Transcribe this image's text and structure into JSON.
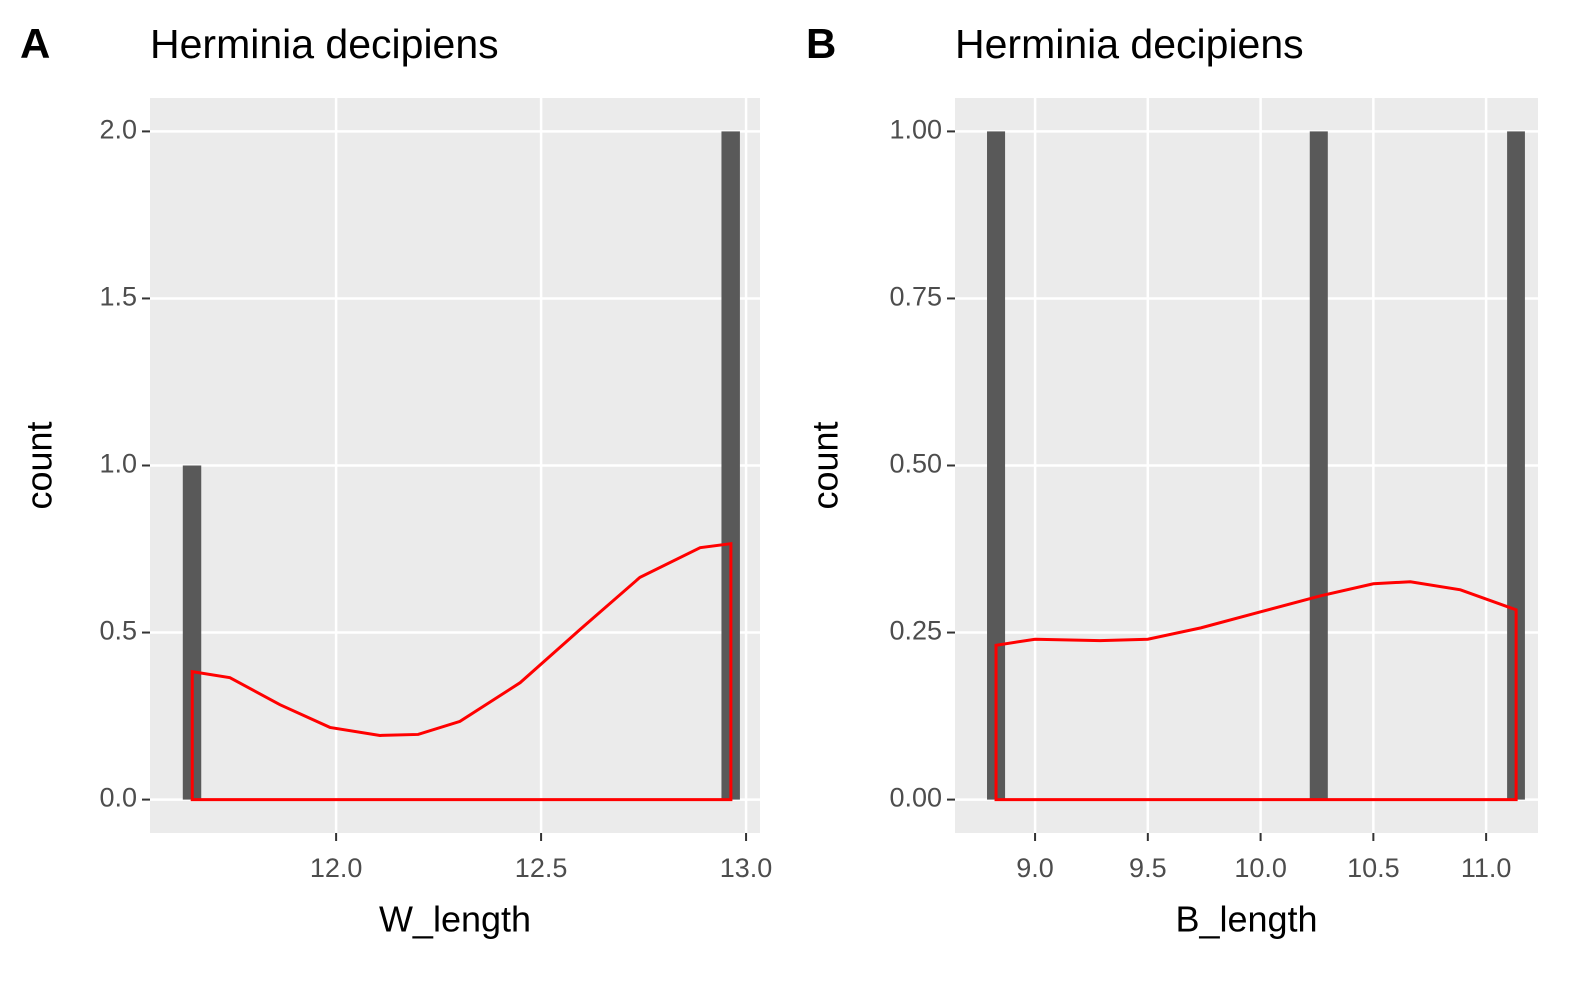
{
  "chart_data": [
    {
      "type": "histogram",
      "tag": "A",
      "title": "Herminia decipiens",
      "xlabel": "W_length",
      "ylabel": "count",
      "bins": [
        11.626,
        11.671,
        11.717,
        11.762,
        11.807,
        11.853,
        11.898,
        11.943,
        11.988,
        12.034,
        12.079,
        12.124,
        12.17,
        12.215,
        12.26,
        12.306,
        12.351,
        12.396,
        12.441,
        12.487,
        12.532,
        12.577,
        12.623,
        12.668,
        12.713,
        12.759,
        12.804,
        12.849,
        12.894,
        12.94,
        12.985
      ],
      "counts": [
        1,
        0,
        0,
        0,
        0,
        0,
        0,
        0,
        0,
        0,
        0,
        0,
        0,
        0,
        0,
        0,
        0,
        0,
        0,
        0,
        0,
        0,
        0,
        0,
        0,
        0,
        0,
        0,
        0,
        2
      ],
      "color": "#595959",
      "density": {
        "color": "#ff0000",
        "x": [
          11.649,
          11.741,
          11.863,
          11.985,
          12.107,
          12.2,
          12.302,
          12.449,
          12.595,
          12.741,
          12.888,
          12.963
        ],
        "values": [
          0.383,
          0.365,
          0.284,
          0.216,
          0.192,
          0.195,
          0.234,
          0.35,
          0.509,
          0.665,
          0.754,
          0.766
        ]
      },
      "xlim": [
        11.546,
        13.034
      ],
      "ylim": [
        -0.1,
        2.1
      ],
      "xticks": [
        {
          "value": 12,
          "label": "12.0"
        },
        12.5,
        {
          "value": 13,
          "label": "13.0"
        }
      ],
      "yticks": [
        {
          "value": 0,
          "label": "0.0"
        },
        0.5,
        {
          "value": 1,
          "label": "1.0"
        },
        1.5,
        {
          "value": 2,
          "label": "2.0"
        }
      ],
      "grid": true
    },
    {
      "type": "histogram",
      "tag": "B",
      "title": "Herminia decipiens",
      "xlabel": "B_length",
      "ylabel": "count",
      "bins": [
        8.787,
        8.867,
        8.946,
        9.026,
        9.105,
        9.185,
        9.264,
        9.344,
        9.423,
        9.503,
        9.582,
        9.662,
        9.741,
        9.821,
        9.9,
        9.98,
        10.059,
        10.139,
        10.218,
        10.298,
        10.377,
        10.457,
        10.536,
        10.616,
        10.695,
        10.775,
        10.854,
        10.934,
        11.013,
        11.093,
        11.172
      ],
      "counts": [
        1,
        0,
        0,
        0,
        0,
        0,
        0,
        0,
        0,
        0,
        0,
        0,
        0,
        0,
        0,
        0,
        0,
        0,
        1,
        0,
        0,
        0,
        0,
        0,
        0,
        0,
        0,
        0,
        0,
        1
      ],
      "color": "#595959",
      "density": {
        "color": "#ff0000",
        "x": [
          8.827,
          9.0,
          9.288,
          9.5,
          9.735,
          10.0,
          10.266,
          10.5,
          10.664,
          10.886,
          11.133
        ],
        "values": [
          0.231,
          0.24,
          0.238,
          0.24,
          0.257,
          0.281,
          0.305,
          0.323,
          0.326,
          0.314,
          0.284
        ]
      },
      "xlim": [
        8.645,
        11.23
      ],
      "ylim": [
        -0.05,
        1.05
      ],
      "xticks": [
        {
          "value": 9,
          "label": "9.0"
        },
        9.5,
        {
          "value": 10,
          "label": "10.0"
        },
        10.5,
        {
          "value": 11,
          "label": "11.0"
        }
      ],
      "yticks": [
        {
          "value": 0,
          "label": "0.00"
        },
        0.25,
        {
          "value": 0.5,
          "label": "0.50"
        },
        0.75,
        {
          "value": 1,
          "label": "1.00"
        }
      ],
      "grid": true
    }
  ]
}
